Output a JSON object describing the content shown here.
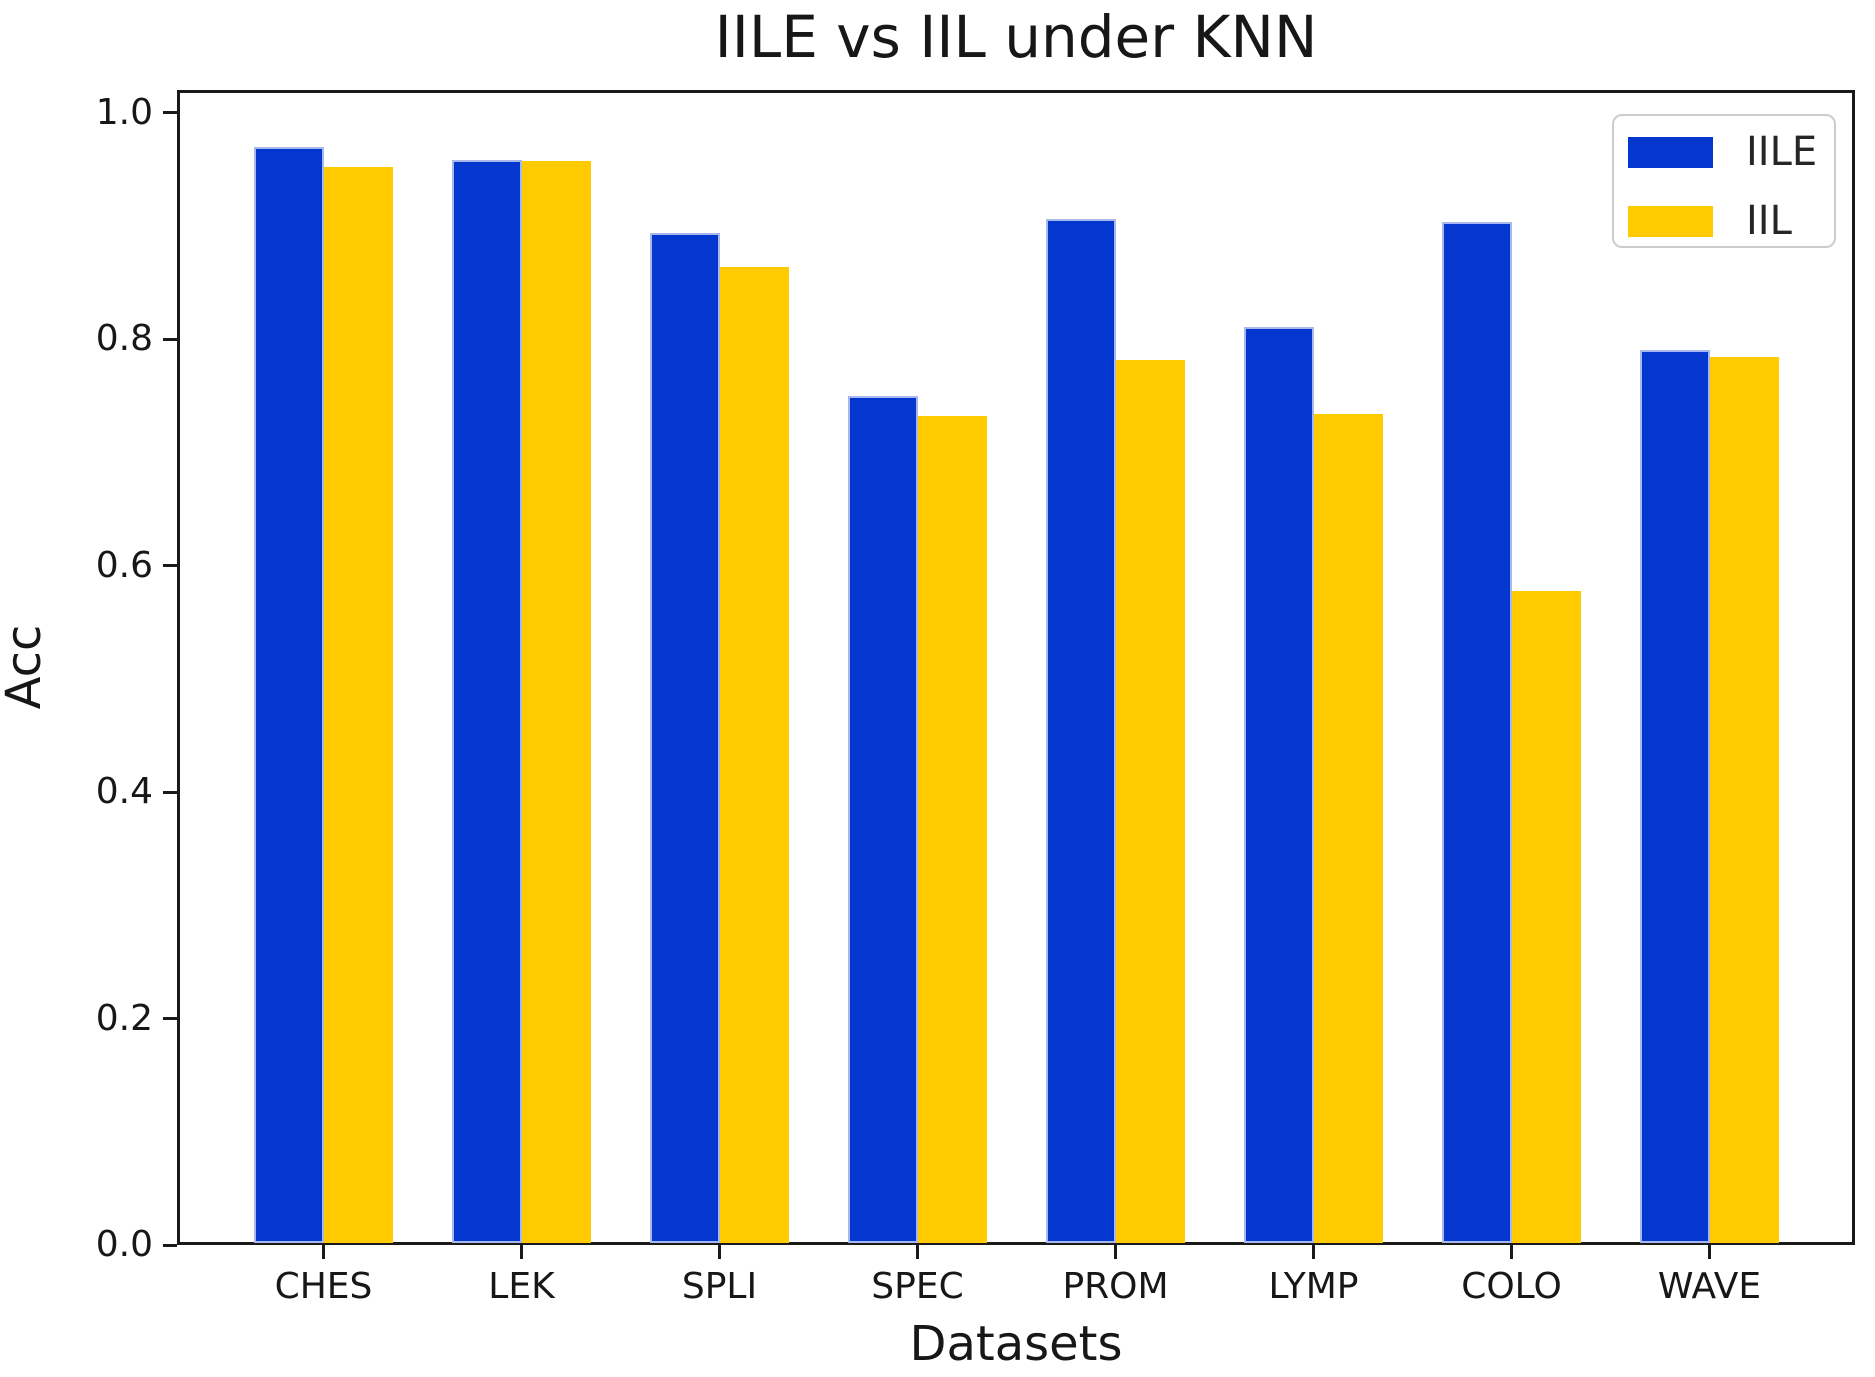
{
  "figure": {
    "title": "IILE vs IIL under KNN",
    "background": "#ffffff",
    "text_color": "#1a1a1a"
  },
  "chart_data": {
    "type": "bar",
    "title": "IILE vs IIL under KNN",
    "xlabel": "Datasets",
    "ylabel": "Acc",
    "categories": [
      "CHES",
      "LEK",
      "SPLI",
      "SPEC",
      "PROM",
      "LYMP",
      "COLO",
      "WAVE"
    ],
    "series": [
      {
        "name": "IILE",
        "color": "#0437cd",
        "edge_color": "#a8b8ee",
        "values": [
          0.97,
          0.958,
          0.894,
          0.75,
          0.906,
          0.811,
          0.903,
          0.79
        ]
      },
      {
        "name": "IIL",
        "color": "#ffcb00",
        "edge_color": "#ffcb00",
        "values": [
          0.952,
          0.957,
          0.864,
          0.732,
          0.782,
          0.734,
          0.578,
          0.784
        ]
      }
    ],
    "ylim": [
      0,
      1.02
    ],
    "yticks": [
      0.0,
      0.2,
      0.4,
      0.6,
      0.8,
      1.0
    ],
    "ytick_labels": [
      "0.0",
      "0.2",
      "0.4",
      "0.6",
      "0.8",
      "1.0"
    ],
    "grid": false,
    "legend_position": "upper right"
  }
}
